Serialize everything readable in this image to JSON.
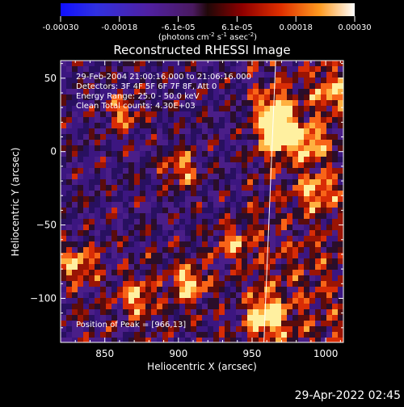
{
  "chart_data": {
    "type": "heatmap",
    "title": "Reconstructed RHESSI Image",
    "xlabel": "Heliocentric X (arcsec)",
    "ylabel": "Heliocentric Y (arcsec)",
    "xlim": [
      820,
      1012
    ],
    "ylim": [
      -130,
      62
    ],
    "xticks": [
      850,
      900,
      950,
      1000
    ],
    "yticks": [
      -100,
      -50,
      0,
      50
    ],
    "colorbar": {
      "ticks": [
        "-0.00030",
        "-0.00018",
        "-6.1e-05",
        "6.1e-05",
        "0.00018",
        "0.00030"
      ],
      "range": [
        -0.0003,
        0.0003
      ],
      "unit_text": "(photons cm",
      "unit_exp1": "-2",
      "unit_mid": " s",
      "unit_exp2": "-1",
      "unit_mid2": " asec",
      "unit_exp3": "-2",
      "unit_end": ")"
    },
    "annotations": [
      "29-Feb-2004 21:00:16.000 to 21:06:16.000",
      "Detectors: 3F 4F 5F 6F 7F 8F, Att 0",
      "Energy Range: 25.0 - 50.0 keV",
      "Clean     Total counts: 4.30E+03"
    ],
    "peak_label": "Position of Peak = [966,13]",
    "peak": [
      966,
      13
    ],
    "limb_line": [
      [
        958,
        -130
      ],
      [
        966,
        62
      ]
    ],
    "hot_spots": [
      {
        "x": 966,
        "y": 13,
        "v": 1.0
      },
      {
        "x": 964,
        "y": 30,
        "v": 0.75
      },
      {
        "x": 958,
        "y": -110,
        "v": 0.85
      },
      {
        "x": 905,
        "y": -88,
        "v": 0.7
      },
      {
        "x": 870,
        "y": -98,
        "v": 0.6
      },
      {
        "x": 987,
        "y": 8,
        "v": 0.65
      },
      {
        "x": 992,
        "y": -25,
        "v": 0.6
      },
      {
        "x": 1002,
        "y": 42,
        "v": 0.6
      },
      {
        "x": 860,
        "y": 28,
        "v": 0.55
      },
      {
        "x": 900,
        "y": -10,
        "v": 0.6
      },
      {
        "x": 935,
        "y": -60,
        "v": 0.55
      },
      {
        "x": 830,
        "y": -75,
        "v": 0.6
      }
    ]
  },
  "footer": {
    "timestamp": "29-Apr-2022 02:45"
  }
}
